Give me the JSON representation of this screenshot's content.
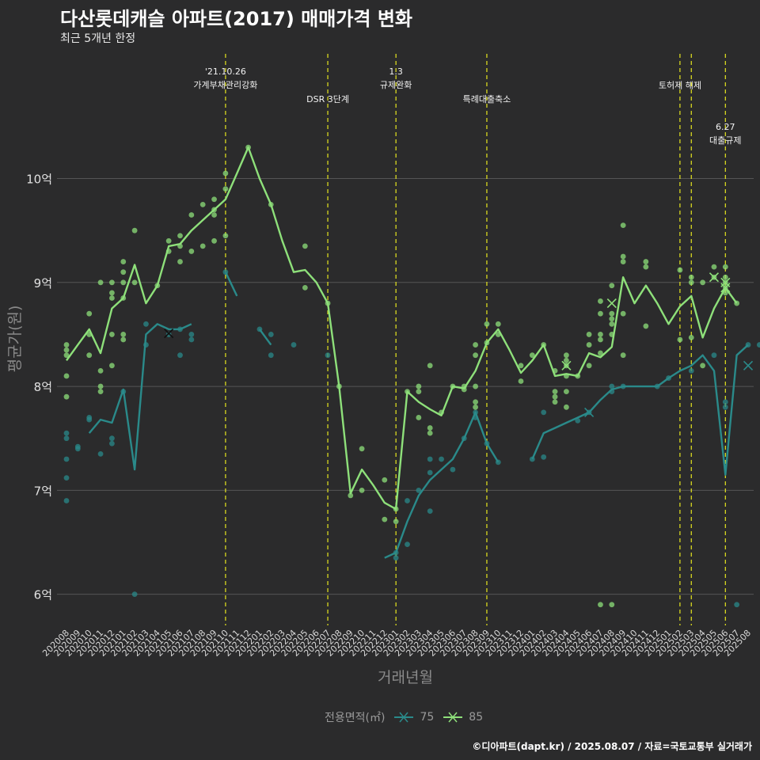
{
  "header": {
    "title": "다산롯데캐슬 아파트(2017) 매매가격 변화",
    "subtitle": "최근 5개년 한정"
  },
  "footer": {
    "caption": "©디아파트(dapt.kr) / 2025.08.07 / 자료=국토교통부 실거래가"
  },
  "legend": {
    "title": "전용면적(㎡)",
    "items": [
      {
        "label": "75",
        "color": "#2a8a8a"
      },
      {
        "label": "85",
        "color": "#8ee07a"
      }
    ]
  },
  "colors": {
    "background": "#2b2b2c",
    "grid": "#555555",
    "event_line": "#e6e61e",
    "s75": "#2a8a8a",
    "s85": "#8ee07a"
  },
  "chart_data": {
    "type": "line",
    "title": "다산롯데캐슬 아파트(2017) 매매가격 변화",
    "subtitle": "최근 5개년 한정",
    "xlabel": "거래년월",
    "ylabel": "평균가(원)",
    "ylim": [
      5.7,
      11.2
    ],
    "yticks": [
      {
        "value": 6,
        "label": "6억"
      },
      {
        "value": 7,
        "label": "7억"
      },
      {
        "value": 8,
        "label": "8억"
      },
      {
        "value": 9,
        "label": "9억"
      },
      {
        "value": 10,
        "label": "10억"
      }
    ],
    "grid": true,
    "categories": [
      "202008",
      "202009",
      "202010",
      "202011",
      "202012",
      "202101",
      "202102",
      "202103",
      "202104",
      "202105",
      "202106",
      "202107",
      "202108",
      "202109",
      "202110",
      "202111",
      "202112",
      "202201",
      "202202",
      "202203",
      "202204",
      "202205",
      "202206",
      "202207",
      "202208",
      "202209",
      "202210",
      "202211",
      "202212",
      "202301",
      "202302",
      "202303",
      "202304",
      "202305",
      "202306",
      "202307",
      "202308",
      "202309",
      "202310",
      "202311",
      "202312",
      "202401",
      "202402",
      "202403",
      "202404",
      "202405",
      "202406",
      "202407",
      "202408",
      "202409",
      "202410",
      "202411",
      "202412",
      "202501",
      "202502",
      "202503",
      "202504",
      "202505",
      "202506",
      "202507",
      "202508"
    ],
    "series": [
      {
        "name": "75",
        "color": "#2a8a8a",
        "values": [
          null,
          null,
          7.55,
          7.68,
          7.65,
          7.97,
          7.2,
          8.5,
          8.6,
          8.55,
          8.55,
          8.6,
          null,
          null,
          9.1,
          8.87,
          null,
          8.55,
          8.4,
          null,
          null,
          null,
          null,
          null,
          null,
          null,
          null,
          null,
          6.35,
          6.4,
          6.7,
          6.95,
          7.1,
          7.2,
          7.3,
          7.5,
          7.75,
          7.45,
          7.27,
          null,
          null,
          7.3,
          7.55,
          7.6,
          7.65,
          7.7,
          7.75,
          7.87,
          7.97,
          8.0,
          8.0,
          8.0,
          8.0,
          8.08,
          8.15,
          8.2,
          8.3,
          8.15,
          7.15,
          8.3,
          8.4
        ],
        "points": [
          [
            0,
            7.55
          ],
          [
            0,
            7.5
          ],
          [
            0,
            7.3
          ],
          [
            0,
            7.12
          ],
          [
            0,
            6.9
          ],
          [
            1,
            7.4
          ],
          [
            1,
            7.42
          ],
          [
            2,
            7.68
          ],
          [
            2,
            7.7
          ],
          [
            3,
            7.35
          ],
          [
            4,
            7.45
          ],
          [
            4,
            7.5
          ],
          [
            5,
            7.95
          ],
          [
            6,
            6.0
          ],
          [
            7,
            8.4
          ],
          [
            7,
            8.6
          ],
          [
            9,
            8.5
          ],
          [
            10,
            8.3
          ],
          [
            10,
            8.55
          ],
          [
            11,
            8.45
          ],
          [
            11,
            8.5
          ],
          [
            14,
            9.1
          ],
          [
            17,
            8.55
          ],
          [
            18,
            8.3
          ],
          [
            18,
            8.5
          ],
          [
            20,
            8.4
          ],
          [
            23,
            8.3
          ],
          [
            29,
            6.35
          ],
          [
            29,
            6.4
          ],
          [
            30,
            6.48
          ],
          [
            30,
            6.9
          ],
          [
            31,
            7.0
          ],
          [
            32,
            7.17
          ],
          [
            32,
            7.3
          ],
          [
            32,
            6.8
          ],
          [
            33,
            7.3
          ],
          [
            34,
            7.2
          ],
          [
            35,
            7.5
          ],
          [
            36,
            7.75
          ],
          [
            36,
            7.7
          ],
          [
            37,
            7.45
          ],
          [
            38,
            7.27
          ],
          [
            41,
            7.3
          ],
          [
            42,
            7.32
          ],
          [
            42,
            7.75
          ],
          [
            45,
            7.67
          ],
          [
            46,
            7.75
          ],
          [
            48,
            7.95
          ],
          [
            48,
            8.0
          ],
          [
            49,
            8.0
          ],
          [
            52,
            8.0
          ],
          [
            53,
            8.08
          ],
          [
            55,
            8.15
          ],
          [
            57,
            8.3
          ],
          [
            58,
            7.85
          ],
          [
            58,
            7.8
          ],
          [
            59,
            5.9
          ],
          [
            60,
            8.4
          ],
          [
            61,
            8.4
          ]
        ],
        "crosses": [
          [
            9,
            8.51
          ],
          [
            46,
            7.75
          ],
          [
            60,
            8.2
          ]
        ]
      },
      {
        "name": "85",
        "color": "#8ee07a",
        "values": [
          8.25,
          8.4,
          8.55,
          8.32,
          8.75,
          8.85,
          9.17,
          8.8,
          8.97,
          9.35,
          9.37,
          9.5,
          9.6,
          9.7,
          9.8,
          10.05,
          10.3,
          10.0,
          9.75,
          9.4,
          9.1,
          9.12,
          9.0,
          8.8,
          8.0,
          6.97,
          7.2,
          7.05,
          6.88,
          6.82,
          7.95,
          7.85,
          7.78,
          7.72,
          8.0,
          7.98,
          8.15,
          8.42,
          8.55,
          8.35,
          8.13,
          8.25,
          8.4,
          8.1,
          8.12,
          8.1,
          8.32,
          8.28,
          8.38,
          9.05,
          8.8,
          8.97,
          8.8,
          8.6,
          8.77,
          8.87,
          8.47,
          8.75,
          8.95,
          8.8,
          null
        ],
        "points": [
          [
            0,
            8.4
          ],
          [
            0,
            8.35
          ],
          [
            0,
            8.3
          ],
          [
            0,
            8.1
          ],
          [
            0,
            7.9
          ],
          [
            2,
            8.7
          ],
          [
            2,
            8.5
          ],
          [
            2,
            8.3
          ],
          [
            3,
            9.0
          ],
          [
            3,
            8.15
          ],
          [
            3,
            8.0
          ],
          [
            3,
            7.95
          ],
          [
            4,
            9.0
          ],
          [
            4,
            8.9
          ],
          [
            4,
            8.85
          ],
          [
            4,
            8.5
          ],
          [
            4,
            8.2
          ],
          [
            5,
            9.2
          ],
          [
            5,
            9.1
          ],
          [
            5,
            9.0
          ],
          [
            5,
            8.85
          ],
          [
            5,
            8.5
          ],
          [
            5,
            8.45
          ],
          [
            6,
            9.5
          ],
          [
            6,
            9.0
          ],
          [
            8,
            8.97
          ],
          [
            9,
            9.4
          ],
          [
            9,
            9.3
          ],
          [
            10,
            9.45
          ],
          [
            10,
            9.35
          ],
          [
            10,
            9.2
          ],
          [
            11,
            9.65
          ],
          [
            11,
            9.3
          ],
          [
            12,
            9.75
          ],
          [
            12,
            9.35
          ],
          [
            13,
            9.8
          ],
          [
            13,
            9.7
          ],
          [
            13,
            9.65
          ],
          [
            13,
            9.4
          ],
          [
            14,
            10.05
          ],
          [
            14,
            9.9
          ],
          [
            14,
            9.45
          ],
          [
            16,
            10.3
          ],
          [
            18,
            9.75
          ],
          [
            21,
            9.35
          ],
          [
            21,
            8.95
          ],
          [
            23,
            8.8
          ],
          [
            24,
            8.0
          ],
          [
            25,
            6.95
          ],
          [
            26,
            7.4
          ],
          [
            26,
            7.0
          ],
          [
            28,
            7.1
          ],
          [
            28,
            6.72
          ],
          [
            29,
            6.82
          ],
          [
            29,
            6.7
          ],
          [
            30,
            7.95
          ],
          [
            31,
            8.0
          ],
          [
            31,
            7.95
          ],
          [
            31,
            7.7
          ],
          [
            32,
            8.2
          ],
          [
            32,
            7.6
          ],
          [
            32,
            7.55
          ],
          [
            33,
            7.75
          ],
          [
            34,
            8.0
          ],
          [
            35,
            8.0
          ],
          [
            35,
            7.97
          ],
          [
            36,
            8.4
          ],
          [
            36,
            8.3
          ],
          [
            36,
            8.0
          ],
          [
            36,
            7.85
          ],
          [
            36,
            7.8
          ],
          [
            37,
            8.6
          ],
          [
            37,
            8.42
          ],
          [
            38,
            8.6
          ],
          [
            38,
            8.5
          ],
          [
            40,
            8.2
          ],
          [
            40,
            8.05
          ],
          [
            41,
            8.3
          ],
          [
            42,
            8.4
          ],
          [
            43,
            7.95
          ],
          [
            43,
            7.9
          ],
          [
            43,
            8.15
          ],
          [
            43,
            7.85
          ],
          [
            44,
            8.3
          ],
          [
            44,
            8.25
          ],
          [
            44,
            8.2
          ],
          [
            44,
            8.1
          ],
          [
            44,
            7.95
          ],
          [
            44,
            7.8
          ],
          [
            45,
            8.1
          ],
          [
            46,
            8.5
          ],
          [
            46,
            8.4
          ],
          [
            46,
            8.2
          ],
          [
            47,
            8.82
          ],
          [
            47,
            8.7
          ],
          [
            47,
            8.5
          ],
          [
            47,
            8.45
          ],
          [
            47,
            8.32
          ],
          [
            47,
            5.9
          ],
          [
            48,
            8.97
          ],
          [
            48,
            8.7
          ],
          [
            48,
            8.65
          ],
          [
            48,
            8.6
          ],
          [
            48,
            8.5
          ],
          [
            48,
            5.9
          ],
          [
            49,
            9.55
          ],
          [
            49,
            9.25
          ],
          [
            49,
            9.2
          ],
          [
            49,
            8.7
          ],
          [
            49,
            8.3
          ],
          [
            51,
            9.2
          ],
          [
            51,
            9.15
          ],
          [
            51,
            8.58
          ],
          [
            54,
            9.12
          ],
          [
            54,
            8.45
          ],
          [
            55,
            9.05
          ],
          [
            55,
            9.0
          ],
          [
            55,
            8.47
          ],
          [
            56,
            9.0
          ],
          [
            56,
            8.2
          ],
          [
            57,
            9.15
          ],
          [
            57,
            9.05
          ],
          [
            58,
            9.15
          ],
          [
            58,
            9.05
          ],
          [
            58,
            9.0
          ],
          [
            58,
            8.95
          ],
          [
            58,
            8.9
          ],
          [
            59,
            8.8
          ]
        ],
        "crosses": [
          [
            44,
            8.2
          ],
          [
            48,
            8.8
          ],
          [
            57,
            9.05
          ],
          [
            58,
            8.95
          ],
          [
            58,
            9.0
          ]
        ]
      }
    ],
    "events": [
      {
        "index": 14.0,
        "lines": [
          "'21.10.26",
          "가계부채관리강화"
        ],
        "row": 0
      },
      {
        "index": 23.0,
        "lines": [
          "DSR 3단계"
        ],
        "row": 1
      },
      {
        "index": 29.0,
        "lines": [
          "1.3",
          "규제완화"
        ],
        "row": 0
      },
      {
        "index": 37.0,
        "lines": [
          "특례대출축소"
        ],
        "row": 1
      },
      {
        "index": 54.0,
        "lines": [
          "토허제 해제"
        ],
        "row": 0.5
      },
      {
        "index": 55.0,
        "lines": [],
        "row": 0
      },
      {
        "index": 58.0,
        "lines": [
          "6.27",
          "대출규제"
        ],
        "row": 2
      }
    ]
  }
}
